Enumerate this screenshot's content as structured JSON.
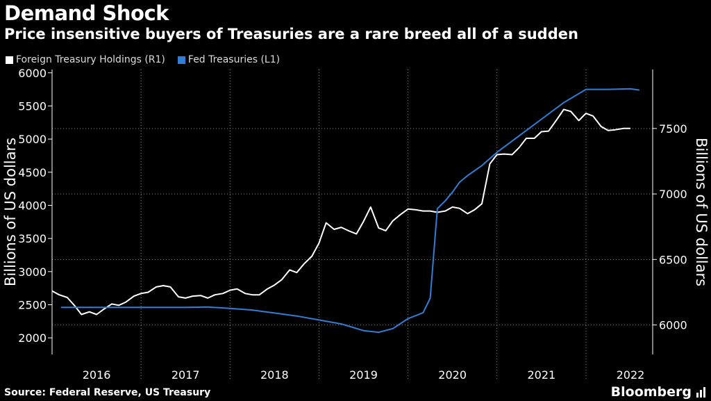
{
  "title": "Demand Shock",
  "subtitle": "Price insensitive buyers of Treasuries are a rare breed all of a sudden",
  "source": "Source: Federal Reserve, US Treasury",
  "brand": "Bloomberg",
  "colors": {
    "foreign": "#ffffff",
    "fed": "#2f7fd6",
    "grid": "#8a8a8a",
    "background": "#000000"
  },
  "chart_data": {
    "type": "line",
    "legend_placement": "top-left",
    "grid": true,
    "x_range": [
      2016.0,
      2022.75
    ],
    "x_ticks": [
      2016.5,
      2017.5,
      2018.5,
      2019.5,
      2020.5,
      2021.5,
      2022.5
    ],
    "x_labels": [
      "2016",
      "2017",
      "2018",
      "2019",
      "2020",
      "2021",
      "2022"
    ],
    "x_gridlines": [
      2017,
      2018,
      2019,
      2020,
      2021,
      2022
    ],
    "left_axis": {
      "label": "Billions of US dollars",
      "ylim": [
        1750,
        6050
      ],
      "ticks": [
        2000,
        2500,
        3000,
        3500,
        4000,
        4500,
        5000,
        5500,
        6000
      ]
    },
    "right_axis": {
      "label": "Billions of US dollars",
      "ylim": [
        5775,
        7950
      ],
      "ticks": [
        6000,
        6500,
        7000,
        7500
      ]
    },
    "series": [
      {
        "name": "Foreign Treasury Holdings (R1)",
        "axis": "right",
        "x": [
          2016.0,
          2016.08,
          2016.17,
          2016.25,
          2016.33,
          2016.42,
          2016.5,
          2016.58,
          2016.67,
          2016.75,
          2016.83,
          2016.92,
          2017.0,
          2017.08,
          2017.17,
          2017.25,
          2017.33,
          2017.42,
          2017.5,
          2017.58,
          2017.67,
          2017.75,
          2017.83,
          2017.92,
          2018.0,
          2018.08,
          2018.17,
          2018.25,
          2018.33,
          2018.42,
          2018.5,
          2018.58,
          2018.67,
          2018.75,
          2018.83,
          2018.92,
          2019.0,
          2019.08,
          2019.17,
          2019.25,
          2019.33,
          2019.42,
          2019.5,
          2019.58,
          2019.67,
          2019.75,
          2019.83,
          2019.92,
          2020.0,
          2020.08,
          2020.17,
          2020.25,
          2020.33,
          2020.42,
          2020.5,
          2020.58,
          2020.67,
          2020.75,
          2020.83,
          2020.92,
          2021.0,
          2021.08,
          2021.17,
          2021.25,
          2021.33,
          2021.42,
          2021.5,
          2021.58,
          2021.67,
          2021.75,
          2021.83,
          2021.92,
          2022.0,
          2022.08,
          2022.17,
          2022.25,
          2022.33,
          2022.42,
          2022.5
        ],
        "values": [
          6260,
          6230,
          6210,
          6150,
          6080,
          6100,
          6080,
          6120,
          6160,
          6150,
          6175,
          6220,
          6240,
          6250,
          6290,
          6300,
          6290,
          6215,
          6205,
          6220,
          6225,
          6205,
          6230,
          6240,
          6265,
          6275,
          6240,
          6230,
          6230,
          6275,
          6305,
          6345,
          6420,
          6400,
          6465,
          6525,
          6625,
          6780,
          6730,
          6745,
          6720,
          6695,
          6790,
          6900,
          6740,
          6720,
          6795,
          6845,
          6885,
          6880,
          6870,
          6870,
          6860,
          6870,
          6900,
          6890,
          6850,
          6880,
          6925,
          7230,
          7300,
          7305,
          7300,
          7355,
          7425,
          7425,
          7475,
          7480,
          7565,
          7645,
          7630,
          7560,
          7615,
          7595,
          7515,
          7485,
          7490,
          7500,
          7500
        ]
      },
      {
        "name": "Fed Treasuries (L1)",
        "axis": "left",
        "x": [
          2016.1,
          2016.5,
          2017.0,
          2017.5,
          2017.75,
          2018.0,
          2018.25,
          2018.5,
          2018.75,
          2019.0,
          2019.25,
          2019.5,
          2019.67,
          2019.83,
          2020.0,
          2020.17,
          2020.25,
          2020.33,
          2020.42,
          2020.5,
          2020.58,
          2020.67,
          2020.83,
          2021.0,
          2021.25,
          2021.5,
          2021.75,
          2022.0,
          2022.25,
          2022.5,
          2022.6
        ],
        "values": [
          2460,
          2460,
          2460,
          2460,
          2465,
          2445,
          2420,
          2375,
          2330,
          2270,
          2210,
          2110,
          2085,
          2140,
          2290,
          2380,
          2600,
          3950,
          4070,
          4200,
          4350,
          4450,
          4600,
          4800,
          5050,
          5300,
          5550,
          5750,
          5750,
          5760,
          5740
        ]
      }
    ]
  }
}
